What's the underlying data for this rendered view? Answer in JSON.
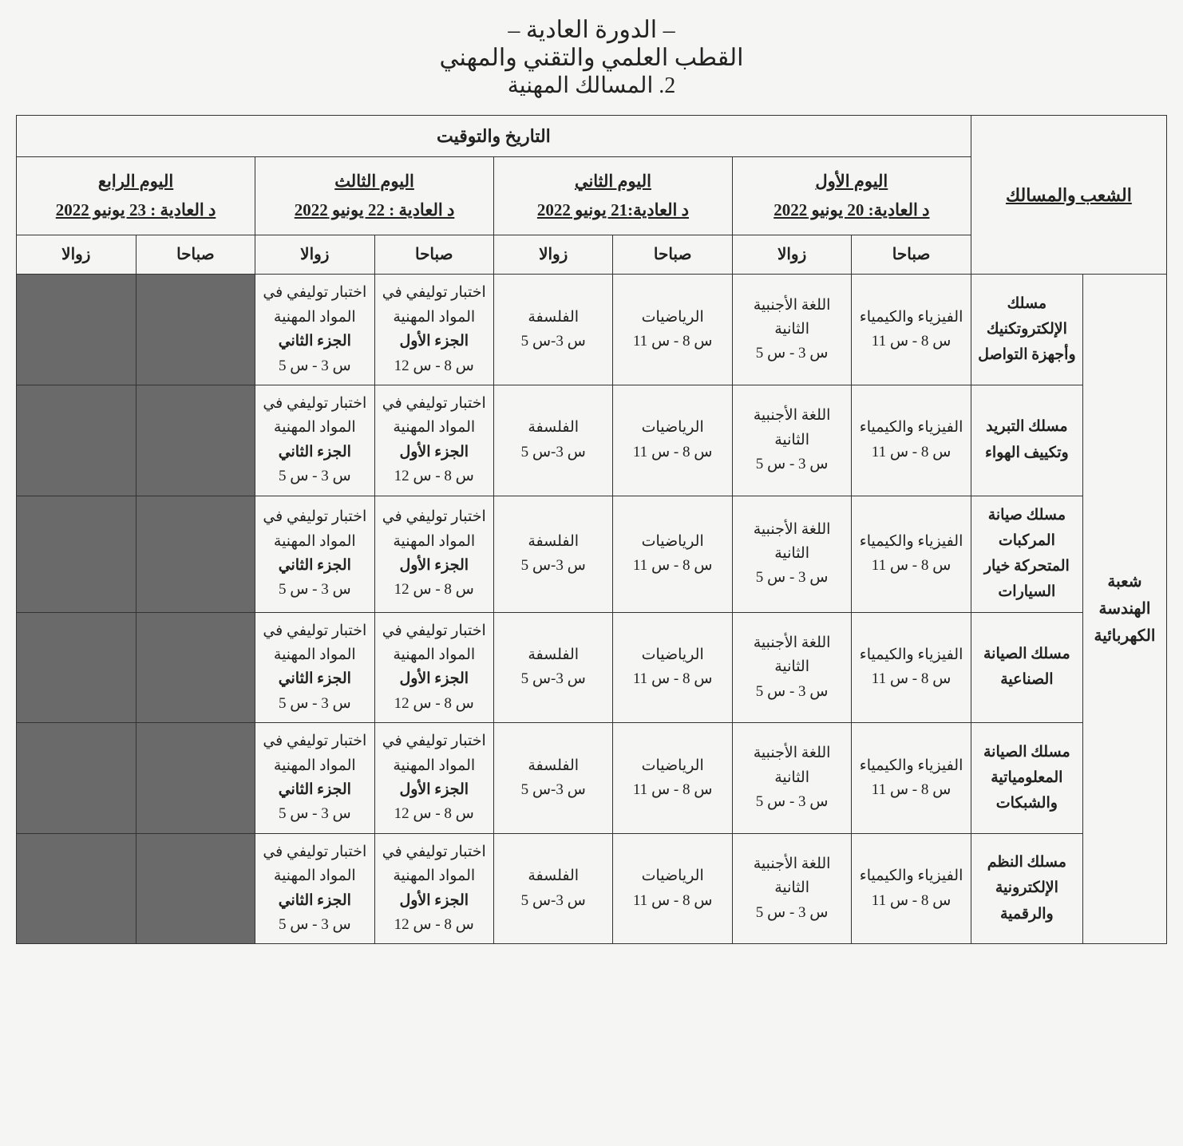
{
  "header": {
    "line1": "– الدورة العادية –",
    "line2": "القطب العلمي والتقني والمهني",
    "line3": "2. المسالك المهنية"
  },
  "table": {
    "top_title": "التاريخ والتوقيت",
    "branch_header": "الشعب والمسالك",
    "days": [
      {
        "name": "اليوم الأول",
        "date": "د العادية: 20 يونيو 2022"
      },
      {
        "name": "اليوم الثاني",
        "date": "د العادية:21 يونيو 2022"
      },
      {
        "name": "اليوم الثالث",
        "date": "د العادية : 22 يونيو 2022"
      },
      {
        "name": "اليوم الرابع",
        "date": "د العادية : 23 يونيو 2022"
      }
    ],
    "session_morning": "صباحا",
    "session_afternoon": "زوالا",
    "branch": "شعبة الهندسة الكهربائية",
    "tracks": [
      "مسلك الإلكتروتكنيك وأجهزة التواصل",
      "مسلك التبريد وتكييف الهواء",
      "مسلك صيانة المركبات المتحركة خيار السيارات",
      "مسلك الصيانة الصناعية",
      "مسلك الصيانة المعلومياتية والشبكات",
      "مسلك النظم الإلكترونية والرقمية"
    ],
    "subjects": {
      "physics": {
        "name": "الفيزياء والكيمياء",
        "time": "س 8 - س 11"
      },
      "lang2": {
        "name": "اللغة الأجنبية الثانية",
        "time": "س 3 - س 5"
      },
      "math": {
        "name": "الرياضيات",
        "time": "س 8 - س 11"
      },
      "philosophy": {
        "name": "الفلسفة",
        "time": "س 3-س 5"
      },
      "synth1": {
        "name": "اختبار توليفي في المواد المهنية",
        "part": "الجزء الأول",
        "time": "س 8 - س 12"
      },
      "synth2": {
        "name": "اختبار توليفي في المواد المهنية",
        "part": "الجزء الثاني",
        "time": "س 3 - س 5"
      }
    }
  },
  "style": {
    "grey_fill": "#6a6a6a",
    "border_color": "#333333",
    "background": "#f5f5f3",
    "text_color": "#222222"
  }
}
